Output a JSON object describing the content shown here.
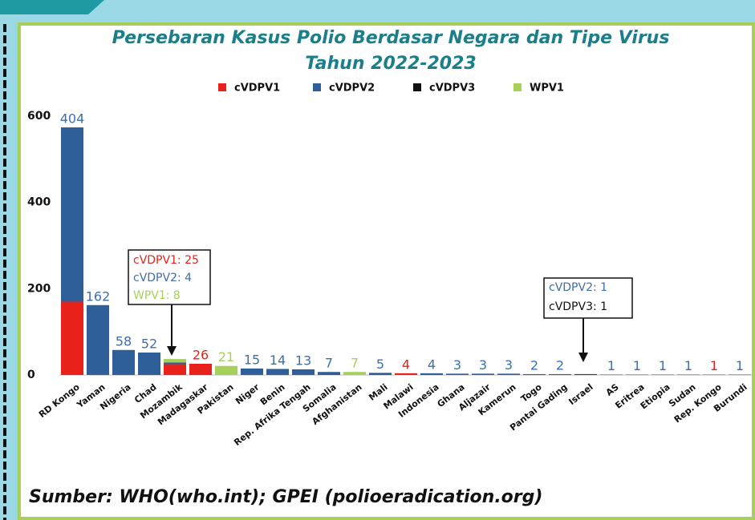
{
  "chart_data": {
    "type": "stacked_bar",
    "title": "Persebaran Kasus Polio Berdasar Negara  dan Tipe Virus",
    "subtitle": "Tahun 2022-2023",
    "categories": [
      "RD Kongo",
      "Yaman",
      "Nigeria",
      "Chad",
      "Mozambik",
      "Madagaskar",
      "Pakistan",
      "Niger",
      "Benin",
      "Rep. Afrika Tengah",
      "Somalia",
      "Afghanistan",
      "Mali",
      "Malawi",
      "Indonesia",
      "Ghana",
      "Aljazair",
      "Kamerun",
      "Togo",
      "Pantai Gading",
      "Israel",
      "AS",
      "Eritrea",
      "Etiopia",
      "Sudan",
      "Rep. Kongo",
      "Burundi"
    ],
    "series": [
      {
        "name": "cVDPV1",
        "color": "#e8221b",
        "label_color": "#e8221b",
        "values": [
          170,
          null,
          null,
          null,
          25,
          26,
          null,
          null,
          null,
          null,
          null,
          null,
          null,
          4,
          null,
          null,
          null,
          null,
          null,
          null,
          null,
          null,
          null,
          null,
          null,
          1,
          null
        ],
        "value_labels": [
          "170",
          null,
          null,
          null,
          null,
          "26",
          null,
          null,
          null,
          null,
          null,
          null,
          null,
          "4",
          null,
          null,
          null,
          null,
          null,
          null,
          null,
          null,
          null,
          null,
          null,
          "1",
          null
        ]
      },
      {
        "name": "cVDPV2",
        "color": "#2e5f99",
        "label_color": "#3f6ea8",
        "values": [
          404,
          162,
          58,
          52,
          4,
          null,
          null,
          15,
          14,
          13,
          7,
          null,
          5,
          null,
          4,
          3,
          3,
          3,
          2,
          2,
          1,
          1,
          1,
          1,
          1,
          null,
          1
        ],
        "value_labels": [
          "404",
          "162",
          "58",
          "52",
          null,
          null,
          null,
          "15",
          "14",
          "13",
          "7",
          null,
          "5",
          null,
          "4",
          "3",
          "3",
          "3",
          "2",
          "2",
          null,
          "1",
          "1",
          "1",
          "1",
          null,
          "1"
        ]
      },
      {
        "name": "cVDPV3",
        "color": "#111111",
        "label_color": "#111111",
        "values": [
          null,
          null,
          null,
          null,
          null,
          null,
          null,
          null,
          null,
          null,
          null,
          null,
          null,
          null,
          null,
          null,
          null,
          null,
          null,
          null,
          1,
          null,
          null,
          null,
          null,
          null,
          null
        ],
        "value_labels": [
          null,
          null,
          null,
          null,
          null,
          null,
          null,
          null,
          null,
          null,
          null,
          null,
          null,
          null,
          null,
          null,
          null,
          null,
          null,
          null,
          null,
          null,
          null,
          null,
          null,
          null,
          null
        ]
      },
      {
        "name": "WPV1",
        "color": "#a6d05a",
        "label_color": "#a6d05a",
        "values": [
          null,
          null,
          null,
          null,
          8,
          null,
          21,
          null,
          null,
          null,
          null,
          7,
          null,
          null,
          null,
          null,
          null,
          null,
          null,
          null,
          null,
          null,
          null,
          null,
          null,
          null,
          null
        ],
        "value_labels": [
          null,
          null,
          null,
          null,
          null,
          null,
          "21",
          null,
          null,
          null,
          null,
          "7",
          null,
          null,
          null,
          null,
          null,
          null,
          null,
          null,
          null,
          null,
          null,
          null,
          null,
          null,
          null
        ]
      }
    ],
    "ylim": [
      0,
      600
    ],
    "yticks": [
      0,
      200,
      400,
      600
    ],
    "grid": false,
    "annotations": [
      {
        "lines": [
          "cVDPV1: 25",
          "cVDPV2: 4",
          "WPV1: 8"
        ]
      },
      {
        "lines": [
          "cVDPV2: 1",
          "cVDPV3: 1"
        ]
      }
    ],
    "source": "Sumber: WHO(who.int); GPEI (polioeradication.org)"
  }
}
